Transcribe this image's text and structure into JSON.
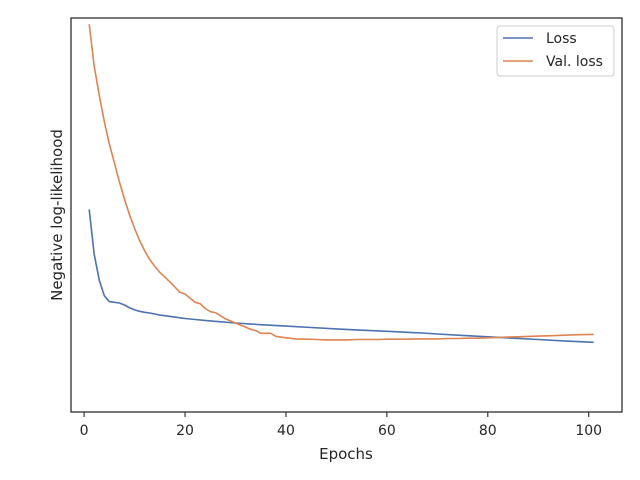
{
  "chart_data": {
    "type": "line",
    "xlabel": "Epochs",
    "ylabel": "Negative log-likelihood",
    "xlim": [
      -2.6,
      106.6
    ],
    "ylim": [
      -0.52,
      10.9
    ],
    "xticks": [
      0,
      20,
      40,
      60,
      80,
      100
    ],
    "yticks_shown": false,
    "grid": false,
    "legend_position": "top-right",
    "series": [
      {
        "name": "Loss",
        "color": "#4c72b0",
        "x": [
          1,
          2,
          3,
          4,
          5,
          6,
          7,
          8,
          9,
          10,
          11,
          12,
          13,
          14,
          15,
          16,
          17,
          18,
          19,
          20,
          22,
          25,
          30,
          35,
          40,
          45,
          50,
          55,
          60,
          65,
          67,
          70,
          75,
          80,
          85,
          90,
          95,
          101
        ],
        "y": [
          5.35,
          4.05,
          3.3,
          2.85,
          2.68,
          2.66,
          2.64,
          2.58,
          2.5,
          2.44,
          2.4,
          2.37,
          2.35,
          2.32,
          2.29,
          2.27,
          2.25,
          2.23,
          2.21,
          2.19,
          2.16,
          2.12,
          2.06,
          2.01,
          1.97,
          1.93,
          1.89,
          1.85,
          1.82,
          1.78,
          1.77,
          1.74,
          1.7,
          1.66,
          1.62,
          1.58,
          1.54,
          1.5
        ]
      },
      {
        "name": "Val. loss",
        "color": "#dd8452",
        "x": [
          1,
          2,
          3,
          4,
          5,
          6,
          7,
          8,
          9,
          10,
          11,
          12,
          13,
          14,
          15,
          16,
          17,
          18,
          19,
          20,
          21,
          22,
          23,
          24,
          25,
          26,
          27,
          28,
          29,
          30,
          31,
          32,
          33,
          34,
          35,
          36,
          37,
          38,
          40,
          42,
          44,
          46,
          48,
          50,
          52,
          54,
          56,
          58,
          60,
          62,
          64,
          66,
          68,
          70,
          72,
          74,
          76,
          78,
          80,
          82,
          84,
          86,
          88,
          90,
          92,
          94,
          96,
          98,
          101
        ],
        "y": [
          10.72,
          9.5,
          8.65,
          7.9,
          7.25,
          6.7,
          6.15,
          5.65,
          5.2,
          4.8,
          4.45,
          4.15,
          3.9,
          3.7,
          3.53,
          3.39,
          3.25,
          3.1,
          2.95,
          2.9,
          2.78,
          2.66,
          2.62,
          2.48,
          2.39,
          2.36,
          2.27,
          2.18,
          2.12,
          2.06,
          2.0,
          1.94,
          1.88,
          1.84,
          1.76,
          1.76,
          1.76,
          1.67,
          1.63,
          1.6,
          1.59,
          1.58,
          1.57,
          1.57,
          1.57,
          1.58,
          1.58,
          1.58,
          1.59,
          1.59,
          1.59,
          1.6,
          1.6,
          1.6,
          1.61,
          1.61,
          1.62,
          1.62,
          1.63,
          1.64,
          1.65,
          1.66,
          1.67,
          1.68,
          1.69,
          1.7,
          1.71,
          1.72,
          1.73
        ]
      }
    ]
  }
}
